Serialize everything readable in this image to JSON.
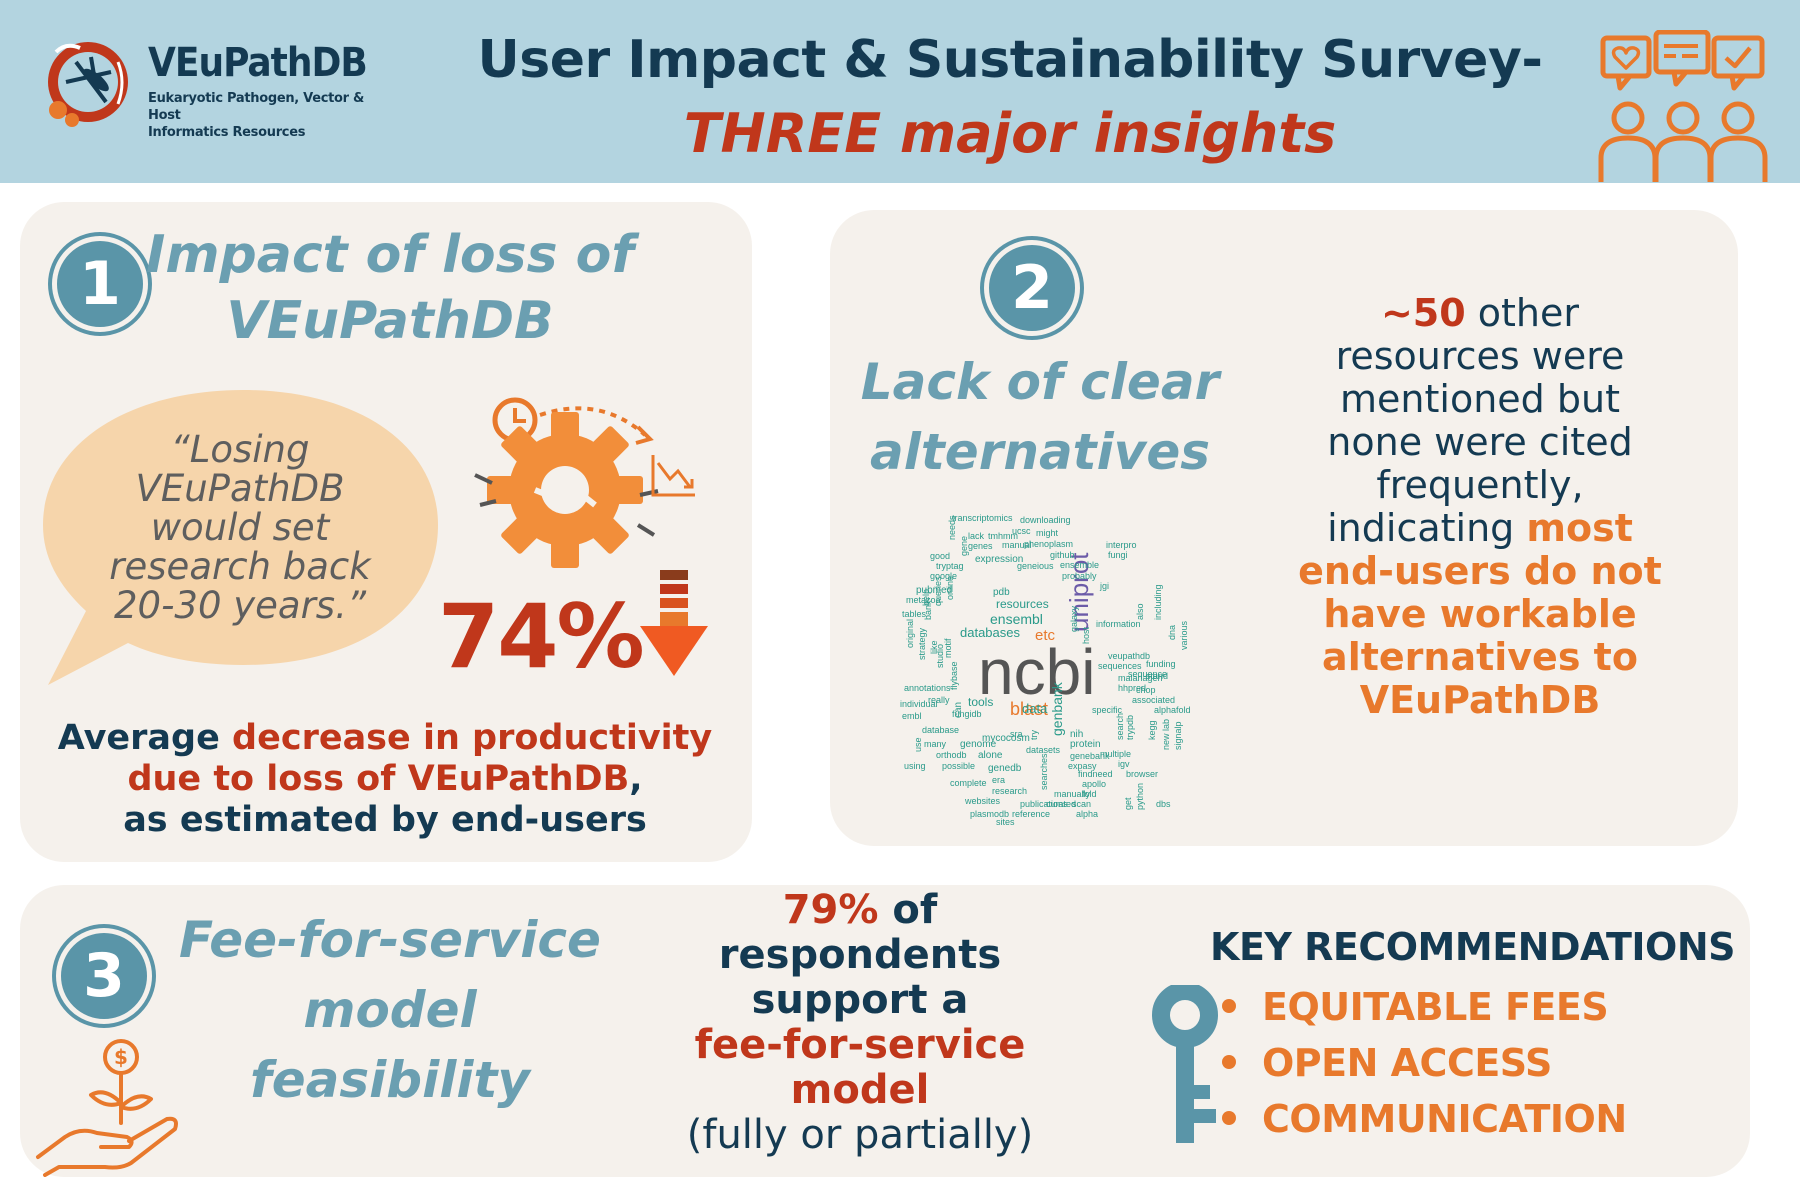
{
  "colors": {
    "header_bg": "#b3d4e0",
    "navy": "#143a52",
    "red": "#c0371b",
    "orange": "#e8792c",
    "teal": "#5a95a8",
    "panel_bg": "#f5f1ec",
    "quote_bubble": "#f6d5ab"
  },
  "header": {
    "logo": {
      "name": "VEuPathDB",
      "subtitle_line1": "Eukaryotic Pathogen, Vector & Host",
      "subtitle_line2": "Informatics Resources",
      "icon": "mosquito-pathogen-logo-icon"
    },
    "title_line1": "User Impact & Sustainability Survey-",
    "title_line2": "THREE major insights",
    "icon": "people-speech-bubbles-icon"
  },
  "insight1": {
    "number": "1",
    "heading_line1": "Impact of loss of",
    "heading_line2": "VEuPathDB",
    "quote": [
      "“Losing",
      "VEuPathDB",
      "would set",
      "research back",
      "20-30 years.”"
    ],
    "stat": "74%",
    "caption": {
      "part1": "Average ",
      "highlight1": "decrease in productivity",
      "highlight2": "due to loss of VEuPathDB",
      "part2": ",",
      "part3": "as estimated by end-users"
    },
    "icons": [
      "gear-clock-icon",
      "down-arrow-icon"
    ]
  },
  "insight2": {
    "number": "2",
    "heading_line1": "Lack of clear",
    "heading_line2": "alternatives",
    "text": {
      "count": "~50",
      "part1": " other",
      "part2": "resources were",
      "part3": "mentioned but",
      "part4": "none were cited",
      "part5": "frequently,",
      "part6": "indicating ",
      "highlight1": "most",
      "highlight2": "end-users do not",
      "highlight3": "have workable",
      "highlight4": "alternatives to",
      "highlight5": "VEuPathDB"
    },
    "wordcloud": [
      "ncbi",
      "uniprot",
      "blast",
      "etc",
      "ensembl",
      "genbank",
      "databases",
      "resources",
      "data",
      "tools",
      "transcriptomics",
      "downloading",
      "ucsc",
      "might",
      "lack",
      "tmhmm",
      "phenoplasm",
      "genes",
      "manual",
      "good",
      "expression",
      "github",
      "tryptag",
      "geneious",
      "ensemble",
      "google",
      "probably",
      "pubmed",
      "pdb",
      "metazoa",
      "fungi",
      "interpro",
      "jgi",
      "information",
      "veupathdb",
      "sequences",
      "sequence",
      "hhpred",
      "associated",
      "alphafold",
      "nih",
      "specific",
      "protein",
      "genebank",
      "expasy",
      "findneed",
      "igv",
      "browser",
      "apollo",
      "manually",
      "fold",
      "curated",
      "scan",
      "alpha",
      "era",
      "research",
      "websites",
      "publications",
      "plasmodb",
      "reference",
      "sites",
      "complete",
      "using",
      "possible",
      "genedb",
      "many",
      "orthodb",
      "alone",
      "database",
      "fungidb",
      "embl",
      "individual",
      "original",
      "strategy",
      "annotations",
      "can",
      "mycocosm",
      "genome",
      "datasets",
      "sra",
      "use",
      "host",
      "galaxy",
      "also",
      "including",
      "malariagen",
      "dna",
      "various",
      "funding",
      "stand",
      "chop",
      "new lab",
      "signalp",
      "trypdb",
      "search",
      "kegg",
      "multiple",
      "get",
      "python",
      "searches",
      "help",
      "queries",
      "online",
      "tables",
      "bank",
      "studio",
      "like",
      "motif",
      "flybase",
      "really",
      "try",
      "gene",
      "needs",
      "dbs",
      "bioplasmid"
    ]
  },
  "insight3": {
    "number": "3",
    "heading_line1": "Fee-for-service",
    "heading_line2": "model feasibility",
    "stat_pct": "79%",
    "stat_line1": " of",
    "stat_line2": "respondents",
    "stat_line3": "support a",
    "stat_line4": "fee-for-service",
    "stat_line5": "model",
    "stat_line6": "(fully or partially)",
    "key_title": "KEY RECOMMENDATIONS",
    "recommendations": [
      "EQUITABLE FEES",
      "OPEN ACCESS",
      "COMMUNICATION"
    ],
    "icons": [
      "money-plant-hand-icon",
      "key-icon"
    ]
  }
}
